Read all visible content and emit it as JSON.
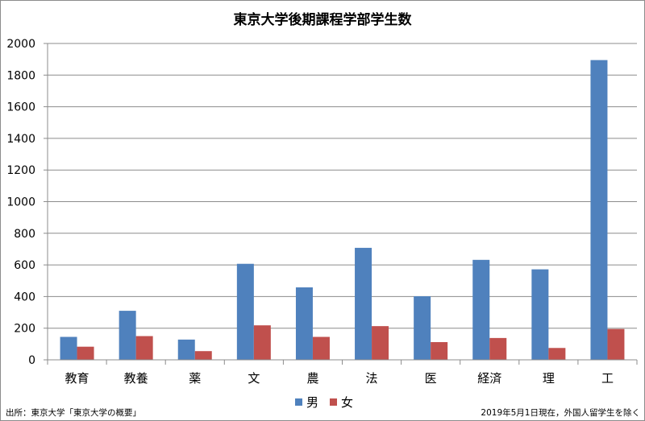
{
  "chart_data": {
    "type": "bar",
    "title": "東京大学後期課程学部学生数",
    "categories": [
      "教育",
      "教養",
      "薬",
      "文",
      "農",
      "法",
      "医",
      "経済",
      "理",
      "工"
    ],
    "series": [
      {
        "name": "男",
        "color": "#4f81bd",
        "values": [
          145,
          310,
          128,
          607,
          458,
          708,
          402,
          632,
          572,
          1895
        ]
      },
      {
        "name": "女",
        "color": "#c0504d",
        "values": [
          83,
          150,
          55,
          218,
          145,
          213,
          112,
          138,
          75,
          195
        ]
      }
    ],
    "xlabel": "",
    "ylabel": "",
    "ylim": [
      0,
      2000
    ],
    "yticks": [
      0,
      200,
      400,
      600,
      800,
      1000,
      1200,
      1400,
      1600,
      1800,
      2000
    ],
    "grid": true,
    "legend_position": "bottom-center"
  },
  "notes": {
    "source": "出所：東京大学「東京大学の概要」",
    "footnote": "2019年5月1日現在，外国人留学生を除く"
  }
}
